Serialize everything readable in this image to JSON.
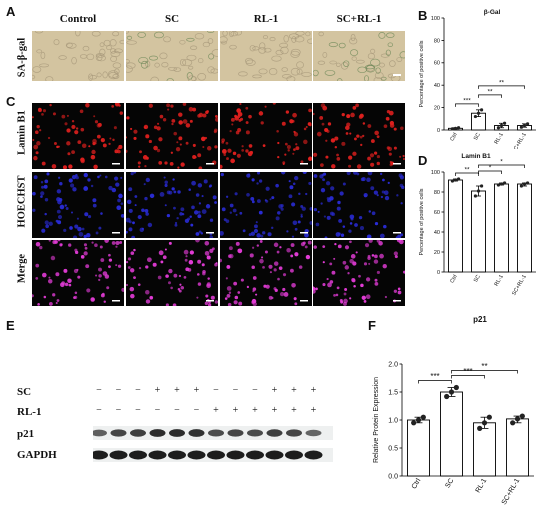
{
  "panels": {
    "A": "A",
    "B": "B",
    "C": "C",
    "D": "D",
    "E": "E",
    "F": "F"
  },
  "panelA": {
    "columns": [
      "Control",
      "SC",
      "RL-1",
      "SC+RL-1"
    ],
    "row_label": "SA-β-gal"
  },
  "panelC": {
    "rows": [
      "Lamin B1",
      "HOECHST",
      "Merge"
    ]
  },
  "panelE": {
    "rows": [
      {
        "label": "SC",
        "signs": [
          "−",
          "−",
          "−",
          "+",
          "+",
          "+",
          "−",
          "−",
          "−",
          "+",
          "+",
          "+"
        ]
      },
      {
        "label": "RL-1",
        "signs": [
          "−",
          "−",
          "−",
          "−",
          "−",
          "−",
          "+",
          "+",
          "+",
          "+",
          "+",
          "+"
        ]
      },
      {
        "label": "p21",
        "signs": []
      },
      {
        "label": "GAPDH",
        "signs": []
      }
    ],
    "p21_intensity": [
      0.55,
      0.75,
      0.8,
      0.95,
      0.95,
      0.9,
      0.7,
      0.75,
      0.7,
      0.8,
      0.75,
      0.5
    ]
  },
  "chart_data": [
    {
      "id": "B",
      "type": "bar",
      "title": "β-Gal",
      "categories": [
        "Ctrl",
        "SC",
        "RL-1",
        "SC+RL-1"
      ],
      "values": [
        1.5,
        15,
        4,
        4
      ],
      "points": [
        [
          1,
          1.5,
          2
        ],
        [
          12,
          15,
          18
        ],
        [
          2,
          4,
          6
        ],
        [
          2.5,
          4,
          5.5
        ]
      ],
      "ylabel": "Percentage of positive cells",
      "ylim": [
        0,
        100
      ],
      "yticks": [
        "0",
        "20",
        "40",
        "60",
        "80",
        "100"
      ],
      "significance": [
        {
          "from": 0,
          "to": 1,
          "label": "***"
        },
        {
          "from": 1,
          "to": 2,
          "label": "**"
        },
        {
          "from": 1,
          "to": 3,
          "label": "**"
        }
      ]
    },
    {
      "id": "D",
      "type": "bar",
      "title": "Lamin B1",
      "categories": [
        "Ctrl",
        "SC",
        "RL-1",
        "SC+RL-1"
      ],
      "values": [
        92,
        81,
        88,
        88
      ],
      "points": [
        [
          91,
          92,
          93
        ],
        [
          76,
          81,
          86
        ],
        [
          87,
          88,
          89
        ],
        [
          86,
          88,
          89
        ]
      ],
      "ylabel": "Percentage of positive cells",
      "ylim": [
        0,
        100
      ],
      "yticks": [
        "0",
        "20",
        "40",
        "60",
        "80",
        "100"
      ],
      "significance": [
        {
          "from": 0,
          "to": 1,
          "label": "**"
        },
        {
          "from": 1,
          "to": 2,
          "label": "*"
        },
        {
          "from": 1,
          "to": 3,
          "label": "*"
        }
      ]
    },
    {
      "id": "F",
      "type": "bar",
      "title": "p21",
      "categories": [
        "Ctrl",
        "SC",
        "RL-1",
        "SC+RL-1"
      ],
      "values": [
        1.0,
        1.5,
        0.95,
        1.02
      ],
      "points": [
        [
          0.95,
          1.0,
          1.05
        ],
        [
          1.42,
          1.5,
          1.58
        ],
        [
          0.85,
          0.95,
          1.05
        ],
        [
          0.95,
          1.02,
          1.07
        ]
      ],
      "ylabel": "Relative Protein Expression",
      "ylim": [
        0,
        2.0
      ],
      "yticks": [
        "0.0",
        "0.5",
        "1.0",
        "1.5",
        "2.0"
      ],
      "significance": [
        {
          "from": 0,
          "to": 1,
          "label": "***"
        },
        {
          "from": 1,
          "to": 2,
          "label": "***"
        },
        {
          "from": 1,
          "to": 3,
          "label": "**"
        }
      ]
    }
  ],
  "colors": {
    "brightfield": "#d3c4a0",
    "lamin": "#e0201e",
    "hoechst": "#2a2cd8",
    "merge": "#e23bd6",
    "dark": "#050505"
  }
}
